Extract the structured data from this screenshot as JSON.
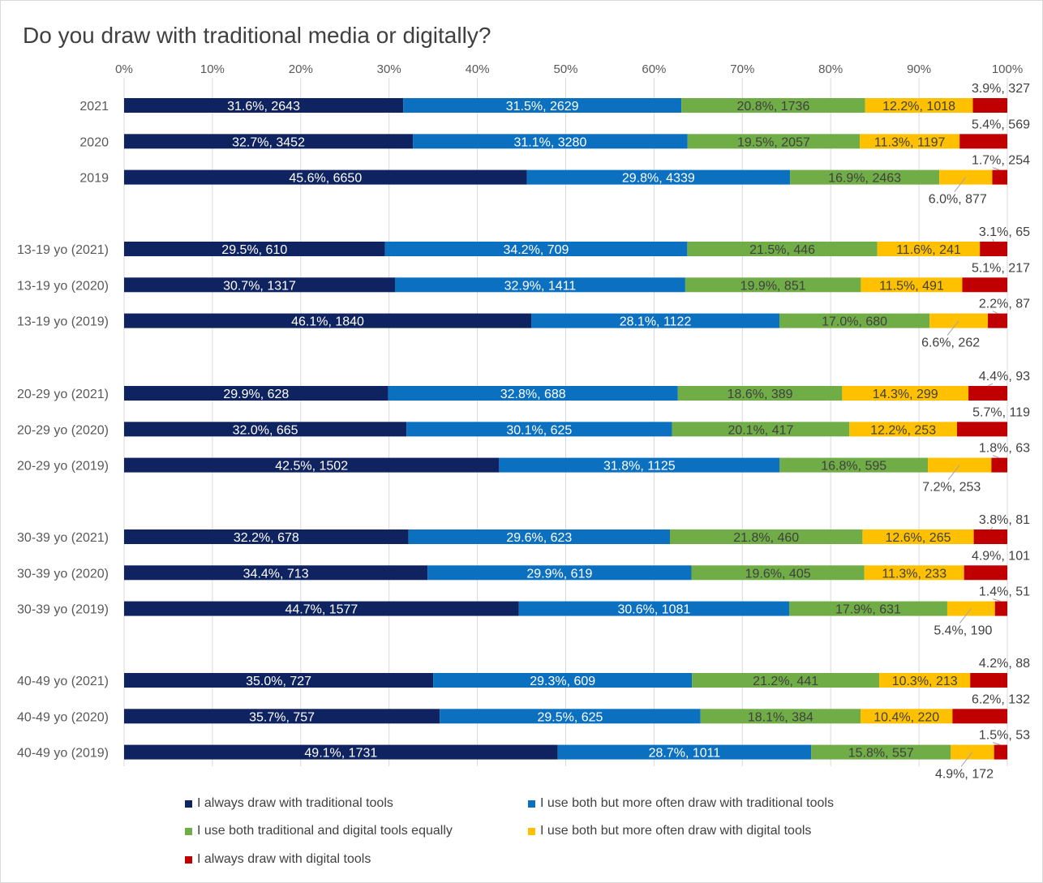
{
  "title": "Do you draw with traditional media or digitally?",
  "chart_data": {
    "type": "bar",
    "orientation": "horizontal",
    "stacked": "percent",
    "title": "Do you draw with traditional media or digitally?",
    "xlim": [
      0,
      100
    ],
    "x_ticks": [
      "0%",
      "10%",
      "20%",
      "30%",
      "40%",
      "50%",
      "60%",
      "70%",
      "80%",
      "90%",
      "100%"
    ],
    "grid": true,
    "legend_position": "bottom",
    "categories": [
      "2021",
      "2020",
      "2019",
      "13-19 yo (2021)",
      "13-19 yo (2020)",
      "13-19 yo (2019)",
      "20-29 yo (2021)",
      "20-29 yo (2020)",
      "20-29 yo (2019)",
      "30-39 yo (2021)",
      "30-39 yo (2020)",
      "30-39 yo (2019)",
      "40-49 yo (2021)",
      "40-49 yo (2020)",
      "40-49 yo (2019)"
    ],
    "series": [
      {
        "name": "I always draw with traditional tools",
        "color": "#0f2360",
        "values": [
          31.6,
          32.7,
          45.6,
          29.5,
          30.7,
          46.1,
          29.9,
          32.0,
          42.5,
          32.2,
          34.4,
          44.7,
          35.0,
          35.7,
          49.1
        ],
        "labels": [
          "31.6%, 2643",
          "32.7%, 3452",
          "45.6%, 6650",
          "29.5%, 610",
          "30.7%, 1317",
          "46.1%, 1840",
          "29.9%, 628",
          "32.0%, 665",
          "42.5%, 1502",
          "32.2%, 678",
          "34.4%, 713",
          "44.7%, 1577",
          "35.0%, 727",
          "35.7%, 757",
          "49.1%, 1731"
        ]
      },
      {
        "name": "I use both but more often draw with traditional tools",
        "color": "#0c70c0",
        "values": [
          31.5,
          31.1,
          29.8,
          34.2,
          32.9,
          28.1,
          32.8,
          30.1,
          31.8,
          29.6,
          29.9,
          30.6,
          29.3,
          29.5,
          28.7
        ],
        "labels": [
          "31.5%, 2629",
          "31.1%, 3280",
          "29.8%, 4339",
          "34.2%, 709",
          "32.9%, 1411",
          "28.1%, 1122",
          "32.8%, 688",
          "30.1%, 625",
          "31.8%, 1125",
          "29.6%, 623",
          "29.9%, 619",
          "30.6%, 1081",
          "29.3%, 609",
          "29.5%, 625",
          "28.7%, 1011"
        ]
      },
      {
        "name": "I use both traditional and digital tools equally",
        "color": "#70ad47",
        "values": [
          20.8,
          19.5,
          16.9,
          21.5,
          19.9,
          17.0,
          18.6,
          20.1,
          16.8,
          21.8,
          19.6,
          17.9,
          21.2,
          18.1,
          15.8
        ],
        "labels": [
          "20.8%, 1736",
          "19.5%, 2057",
          "16.9%, 2463",
          "21.5%, 446",
          "19.9%, 851",
          "17.0%, 680",
          "18.6%, 389",
          "20.1%, 417",
          "16.8%, 595",
          "21.8%, 460",
          "19.6%, 405",
          "17.9%, 631",
          "21.2%, 441",
          "18.1%, 384",
          "15.8%, 557"
        ]
      },
      {
        "name": "I use both but more often draw with digital tools",
        "color": "#ffc000",
        "values": [
          12.2,
          11.3,
          6.0,
          11.6,
          11.5,
          6.6,
          14.3,
          12.2,
          7.2,
          12.6,
          11.3,
          5.4,
          10.3,
          10.4,
          4.9
        ],
        "labels": [
          "12.2%, 1018",
          "11.3%, 1197",
          "6.0%, 877",
          "11.6%, 241",
          "11.5%, 491",
          "6.6%, 262",
          "14.3%, 299",
          "12.2%, 253",
          "7.2%, 253",
          "12.6%, 265",
          "11.3%, 233",
          "5.4%, 190",
          "10.3%, 213",
          "10.4%, 220",
          "4.9%, 172"
        ],
        "label_outside": [
          false,
          false,
          true,
          false,
          false,
          true,
          false,
          false,
          true,
          false,
          false,
          true,
          false,
          false,
          true
        ]
      },
      {
        "name": "I always draw with digital tools",
        "color": "#c00000",
        "values": [
          3.9,
          5.4,
          1.7,
          3.1,
          5.1,
          2.2,
          4.4,
          5.7,
          1.8,
          3.8,
          4.9,
          1.4,
          4.2,
          6.2,
          1.5
        ],
        "labels": [
          "3.9%, 327",
          "5.4%, 569",
          "1.7%, 254",
          "3.1%, 65",
          "5.1%, 217",
          "2.2%, 87",
          "4.4%, 93",
          "5.7%, 119",
          "1.8%, 63",
          "3.8%, 81",
          "4.9%, 101",
          "1.4%, 51",
          "4.2%, 88",
          "6.2%, 132",
          "1.5%, 53"
        ],
        "label_outside": [
          true,
          true,
          true,
          true,
          true,
          true,
          true,
          true,
          true,
          true,
          true,
          true,
          true,
          true,
          true
        ]
      }
    ]
  }
}
